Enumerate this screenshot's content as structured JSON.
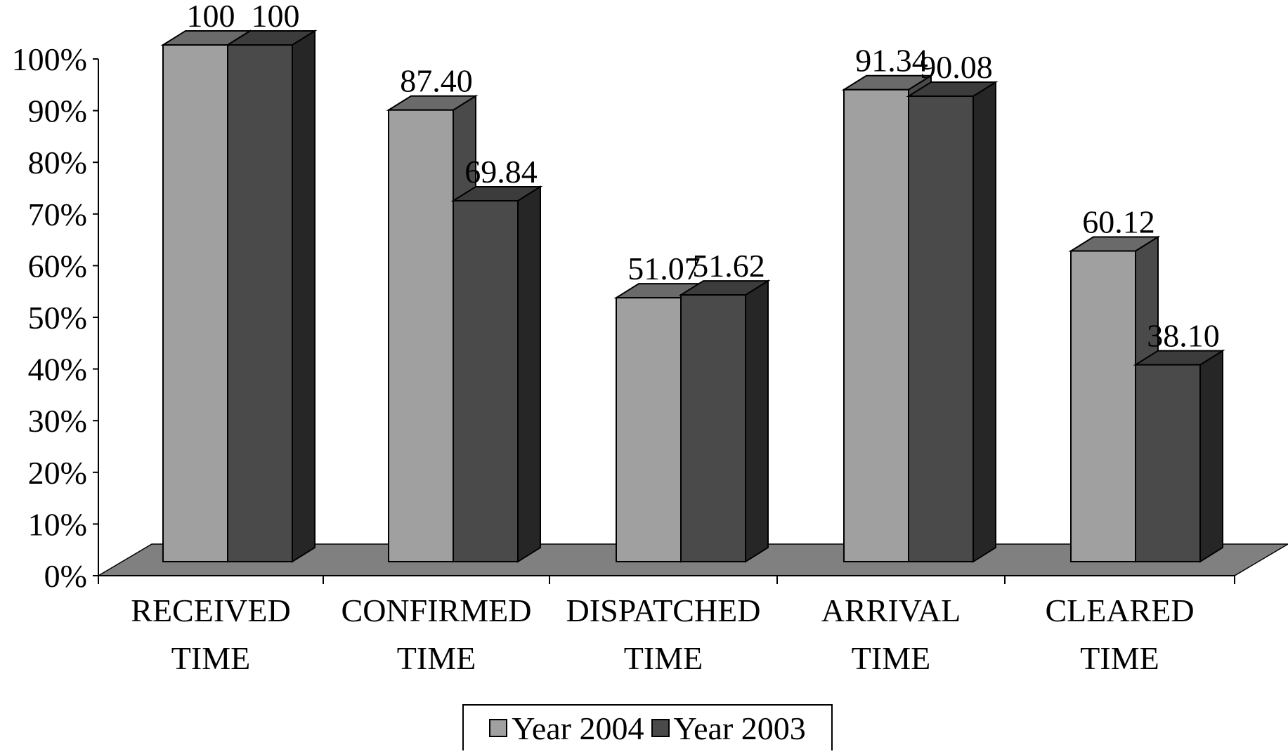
{
  "chart_data": {
    "type": "bar",
    "categories": [
      "RECEIVED TIME",
      "CONFIRMED TIME",
      "DISPATCHED TIME",
      "ARRIVAL TIME",
      "CLEARED TIME"
    ],
    "category_lines": [
      [
        "RECEIVED",
        "TIME"
      ],
      [
        "CONFIRMED",
        "TIME"
      ],
      [
        "DISPATCHED",
        "TIME"
      ],
      [
        "ARRIVAL",
        "TIME"
      ],
      [
        "CLEARED",
        "TIME"
      ]
    ],
    "series": [
      {
        "name": "Year 2004",
        "values": [
          100,
          87.4,
          51.07,
          91.34,
          60.12
        ],
        "labels": [
          "100",
          "87.40",
          "51.07",
          "91.34",
          "60.12"
        ],
        "color": "#a0a0a0"
      },
      {
        "name": "Year 2003",
        "values": [
          100,
          69.84,
          51.62,
          90.08,
          38.1
        ],
        "labels": [
          "100",
          "69.84",
          "51.62",
          "90.08",
          "38.10"
        ],
        "color": "#4a4a4a"
      }
    ],
    "ylim": [
      0,
      100
    ],
    "yticks": [
      "0%",
      "10%",
      "20%",
      "30%",
      "40%",
      "50%",
      "60%",
      "70%",
      "80%",
      "90%",
      "100%"
    ],
    "floor_color": "#808080",
    "legend_position": "bottom",
    "style": "3d-clustered-column"
  }
}
